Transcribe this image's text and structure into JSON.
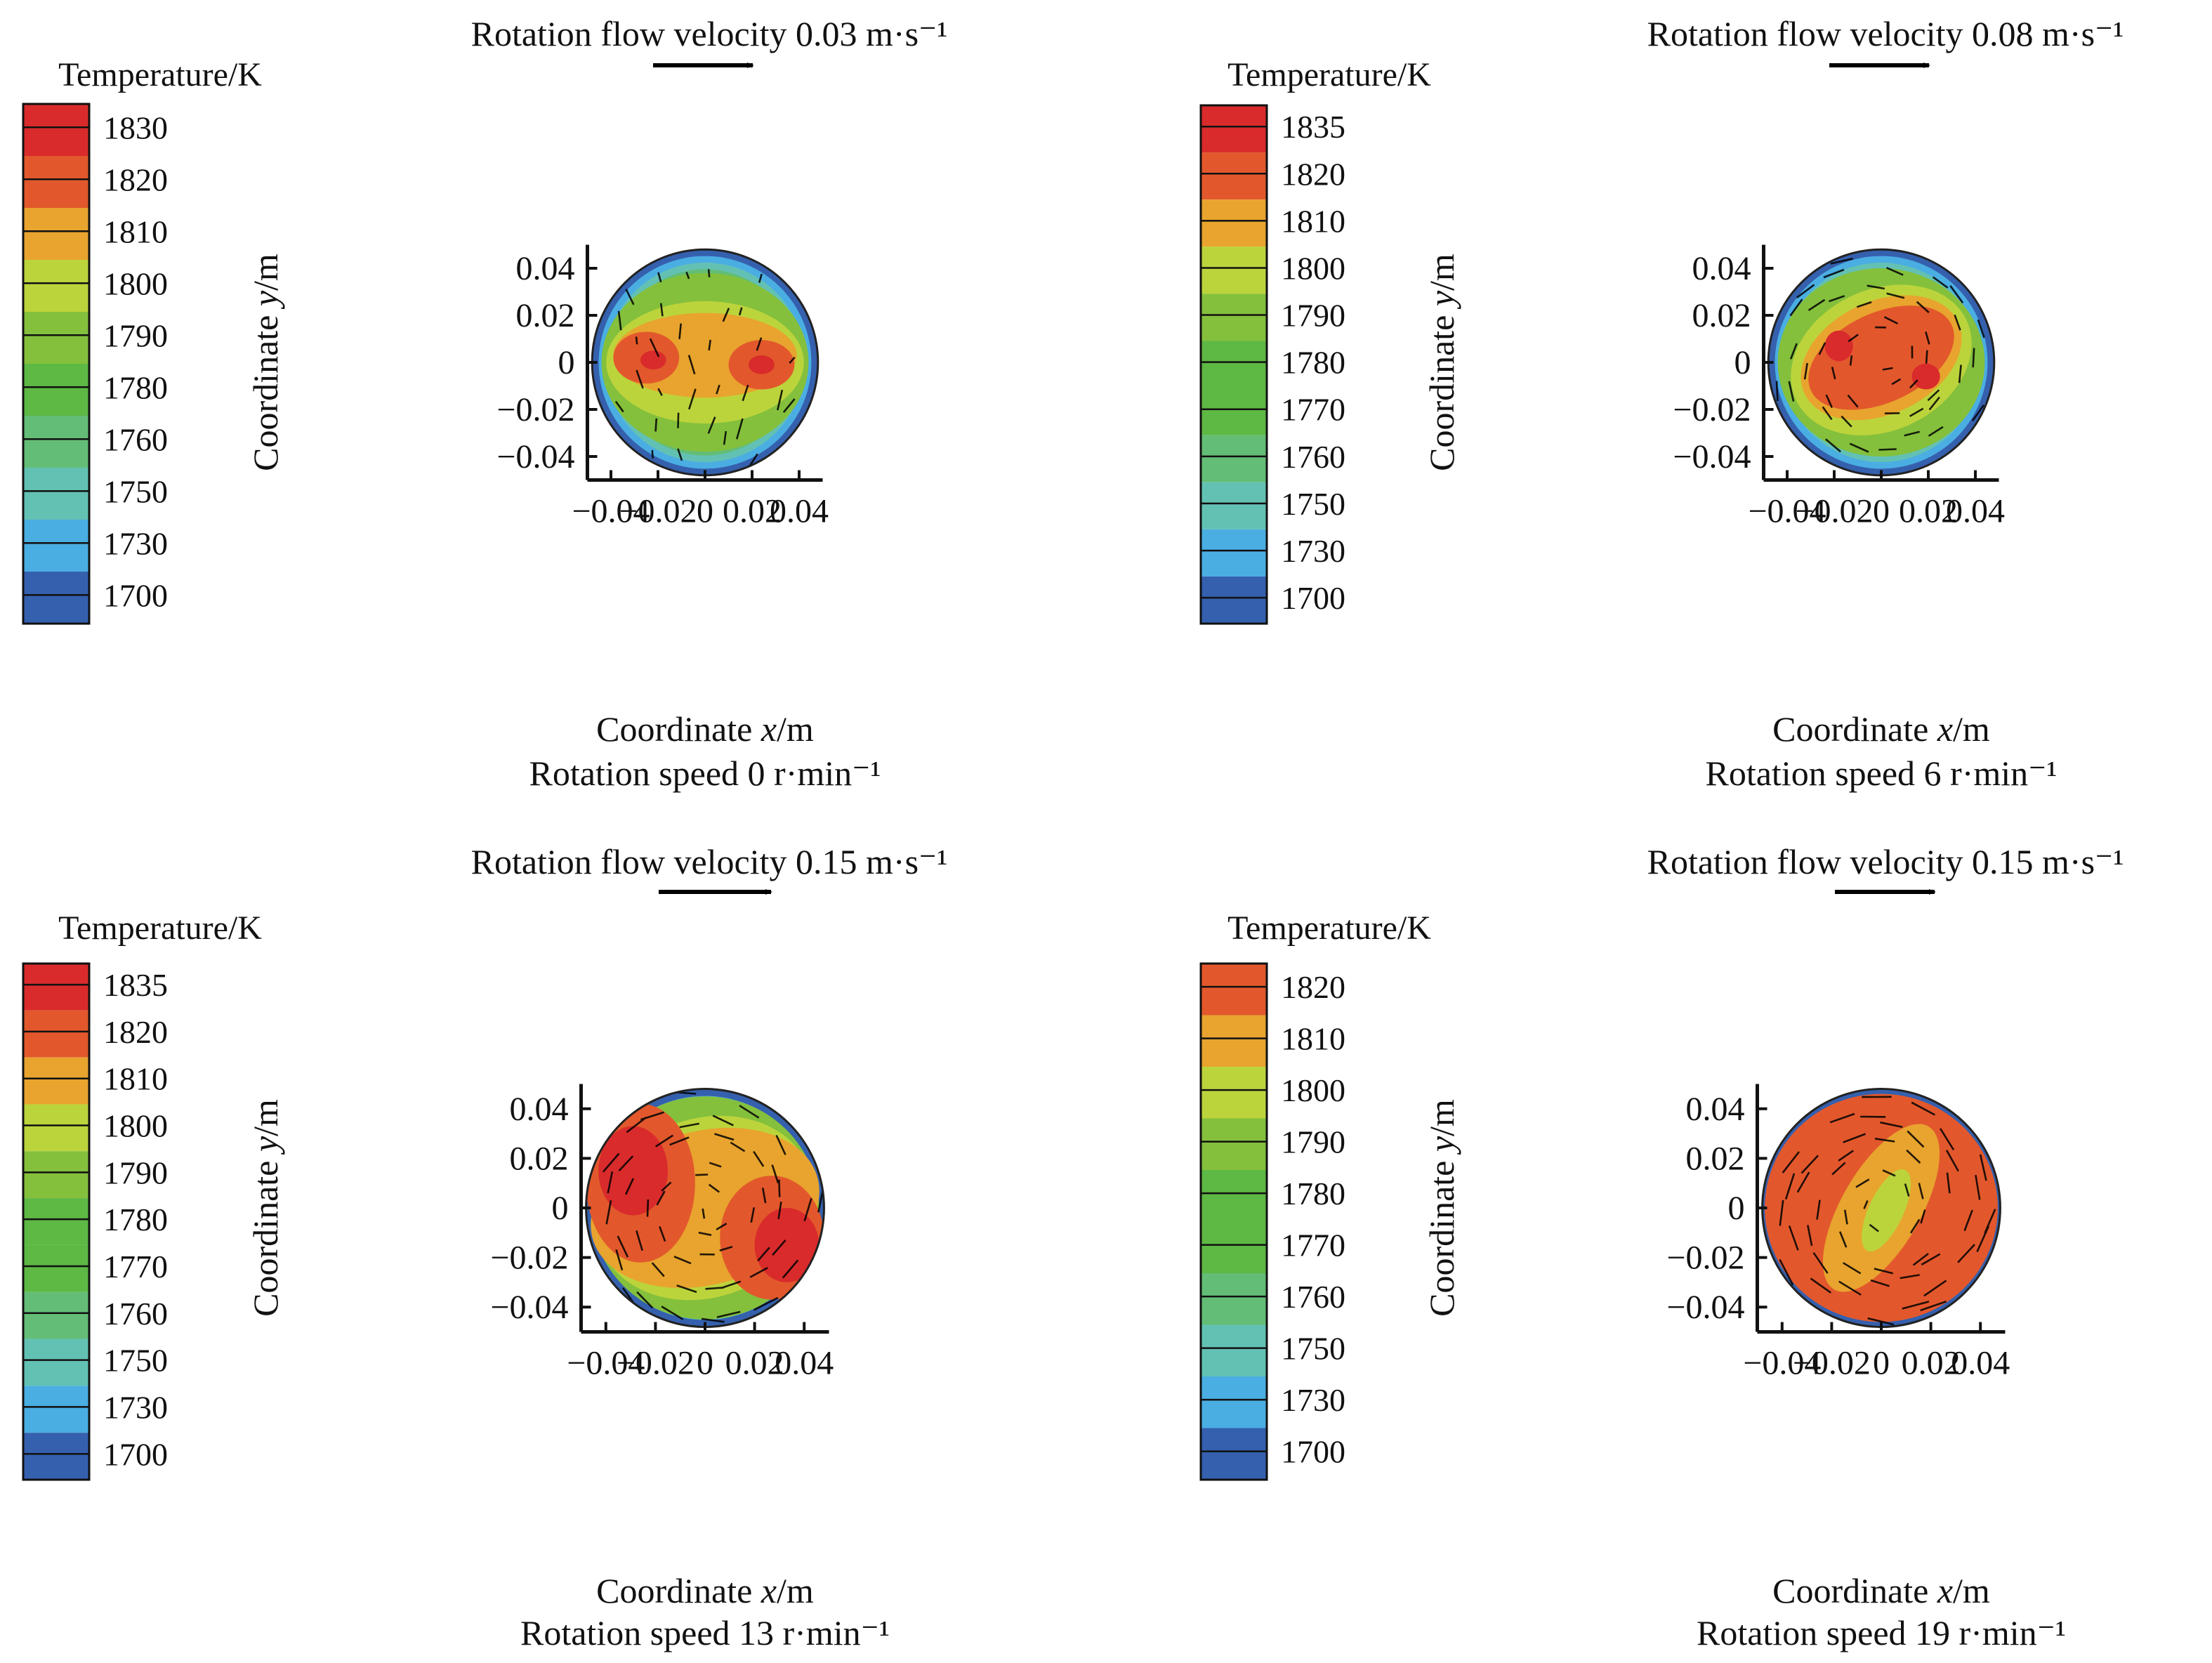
{
  "figure": {
    "panels": [
      {
        "id": "a",
        "velocity_title": "Rotation flow velocity 0.03 m·s⁻¹",
        "speed_caption": "Rotation speed 0 r·min⁻¹",
        "legend_title": "Temperature/K",
        "legend_levels": [
          "1830",
          "1820",
          "1810",
          "1800",
          "1790",
          "1780",
          "1760",
          "1750",
          "1730",
          "1700"
        ],
        "xlabel_pre": "Coordinate ",
        "xlabel_var": "x",
        "xlabel_post": "/m",
        "ylabel_pre": "Coordinate ",
        "ylabel_var": "y",
        "ylabel_post": "/m",
        "xticks": [
          "−0.04",
          "−0.02",
          "0",
          "0.02",
          "0.04"
        ],
        "yticks": [
          "0.04",
          "0.02",
          "0",
          "−0.02",
          "−0.04"
        ]
      },
      {
        "id": "b",
        "velocity_title": "Rotation flow velocity 0.08 m·s⁻¹",
        "speed_caption": "Rotation speed 6 r·min⁻¹",
        "legend_title": "Temperature/K",
        "legend_levels": [
          "1835",
          "1820",
          "1810",
          "1800",
          "1790",
          "1780",
          "1770",
          "1760",
          "1750",
          "1730",
          "1700"
        ],
        "xlabel_pre": "Coordinate ",
        "xlabel_var": "x",
        "xlabel_post": "/m",
        "ylabel_pre": "Coordinate ",
        "ylabel_var": "y",
        "ylabel_post": "/m",
        "xticks": [
          "−0.04",
          "−0.02",
          "0",
          "0.02",
          "0.04"
        ],
        "yticks": [
          "0.04",
          "0.02",
          "0",
          "−0.02",
          "−0.04"
        ]
      },
      {
        "id": "c",
        "velocity_title": "Rotation flow velocity 0.15 m·s⁻¹",
        "speed_caption": "Rotation speed 13 r·min⁻¹",
        "legend_title": "Temperature/K",
        "legend_levels": [
          "1835",
          "1820",
          "1810",
          "1800",
          "1790",
          "1780",
          "1770",
          "1760",
          "1750",
          "1730",
          "1700"
        ],
        "xlabel_pre": "Coordinate ",
        "xlabel_var": "x",
        "xlabel_post": "/m",
        "ylabel_pre": "Coordinate ",
        "ylabel_var": "y",
        "ylabel_post": "/m",
        "xticks": [
          "−0.04",
          "−0.02",
          "0",
          "0.02",
          "0.04"
        ],
        "yticks": [
          "0.04",
          "0.02",
          "0",
          "−0.02",
          "−0.04"
        ]
      },
      {
        "id": "d",
        "velocity_title": "Rotation flow velocity 0.15 m·s⁻¹",
        "speed_caption": "Rotation speed 19 r·min⁻¹",
        "legend_title": "Temperature/K",
        "legend_levels": [
          "1820",
          "1810",
          "1800",
          "1790",
          "1780",
          "1770",
          "1760",
          "1750",
          "1730",
          "1700"
        ],
        "xlabel_pre": "Coordinate ",
        "xlabel_var": "x",
        "xlabel_post": "/m",
        "ylabel_pre": "Coordinate ",
        "ylabel_var": "y",
        "ylabel_post": "/m",
        "xticks": [
          "−0.04",
          "−0.02",
          "0",
          "0.02",
          "0.04"
        ],
        "yticks": [
          "0.04",
          "0.02",
          "0",
          "−0.02",
          "−0.04"
        ]
      }
    ]
  },
  "colors": {
    "1835": "#d92b2b",
    "1830": "#d92b2b",
    "1820": "#e2582c",
    "1810": "#e8a42e",
    "1800": "#bcd43c",
    "1790": "#84c03c",
    "1780": "#5db844",
    "1770": "#5db844",
    "1760": "#63bd76",
    "1750": "#63c1b4",
    "1730": "#4aaee2",
    "1700": "#3560ae",
    "axis": "#111111",
    "vector": "#000000"
  },
  "chart_data": [
    {
      "type": "heatmap",
      "subtype": "temperature contour with velocity vectors",
      "title": "Rotation flow velocity 0.03 m·s⁻¹",
      "caption": "Rotation speed 0 r·min⁻¹",
      "xlabel": "Coordinate x/m",
      "ylabel": "Coordinate y/m",
      "xlim": [
        -0.05,
        0.05
      ],
      "ylim": [
        -0.05,
        0.05
      ],
      "domain_radius": 0.048,
      "colorbar_title": "Temperature/K",
      "colorbar_levels": [
        1830,
        1820,
        1810,
        1800,
        1790,
        1780,
        1760,
        1750,
        1730,
        1700
      ],
      "rotation_flow_velocity": 0.03,
      "rotation_speed": 0,
      "regions": [
        {
          "level": 1790,
          "shape": "ellipse",
          "cx": 0,
          "cy": 0,
          "rx": 0.044,
          "ry": 0.038,
          "rot": 0
        },
        {
          "level": 1800,
          "shape": "ellipse",
          "cx": 0,
          "cy": 0,
          "rx": 0.042,
          "ry": 0.026,
          "rot": 0
        },
        {
          "level": 1810,
          "shape": "ellipse",
          "cx": 0,
          "cy": 0.003,
          "rx": 0.039,
          "ry": 0.018,
          "rot": 0
        },
        {
          "level": 1820,
          "shape": "ellipse",
          "cx": -0.025,
          "cy": 0.002,
          "rx": 0.014,
          "ry": 0.011,
          "rot": 0
        },
        {
          "level": 1820,
          "shape": "ellipse",
          "cx": 0.024,
          "cy": -0.001,
          "rx": 0.014,
          "ry": 0.0105,
          "rot": 0
        },
        {
          "level": 1830,
          "shape": "ellipse",
          "cx": -0.022,
          "cy": 0.001,
          "rx": 0.0055,
          "ry": 0.004,
          "rot": 0
        },
        {
          "level": 1830,
          "shape": "ellipse",
          "cx": 0.024,
          "cy": -0.001,
          "rx": 0.0055,
          "ry": 0.004,
          "rot": 0
        }
      ],
      "rim_levels": [
        1700,
        1730,
        1750,
        1760,
        1780
      ],
      "vector_field": "vertical"
    },
    {
      "type": "heatmap",
      "subtype": "temperature contour with velocity vectors",
      "title": "Rotation flow velocity 0.08 m·s⁻¹",
      "caption": "Rotation speed 6 r·min⁻¹",
      "xlabel": "Coordinate x/m",
      "ylabel": "Coordinate y/m",
      "xlim": [
        -0.05,
        0.05
      ],
      "ylim": [
        -0.05,
        0.05
      ],
      "domain_radius": 0.048,
      "colorbar_title": "Temperature/K",
      "colorbar_levels": [
        1835,
        1820,
        1810,
        1800,
        1790,
        1780,
        1770,
        1760,
        1750,
        1730,
        1700
      ],
      "rotation_flow_velocity": 0.08,
      "rotation_speed": 6,
      "regions": [
        {
          "level": 1790,
          "shape": "ellipse",
          "cx": 0,
          "cy": 0,
          "rx": 0.044,
          "ry": 0.04,
          "rot": 0
        },
        {
          "level": 1800,
          "shape": "ellipse",
          "cx": 0,
          "cy": 0.001,
          "rx": 0.04,
          "ry": 0.03,
          "rot": -25
        },
        {
          "level": 1810,
          "shape": "ellipse",
          "cx": 0,
          "cy": 0.002,
          "rx": 0.036,
          "ry": 0.024,
          "rot": -25
        },
        {
          "level": 1820,
          "shape": "ellipse",
          "cx": 0,
          "cy": 0.002,
          "rx": 0.033,
          "ry": 0.019,
          "rot": -25
        },
        {
          "level": 1835,
          "shape": "ellipse",
          "cx": -0.018,
          "cy": 0.007,
          "rx": 0.006,
          "ry": 0.0065,
          "rot": 0
        },
        {
          "level": 1835,
          "shape": "ellipse",
          "cx": 0.019,
          "cy": -0.006,
          "rx": 0.006,
          "ry": 0.0055,
          "rot": 0
        }
      ],
      "rim_levels": [
        1700,
        1730,
        1750,
        1760,
        1770
      ],
      "vector_field": "swirl"
    },
    {
      "type": "heatmap",
      "subtype": "temperature contour with velocity vectors",
      "title": "Rotation flow velocity 0.15 m·s⁻¹",
      "caption": "Rotation speed 13 r·min⁻¹",
      "xlabel": "Coordinate x/m",
      "ylabel": "Coordinate y/m",
      "xlim": [
        -0.05,
        0.05
      ],
      "ylim": [
        -0.05,
        0.05
      ],
      "domain_radius": 0.048,
      "colorbar_title": "Temperature/K",
      "colorbar_levels": [
        1835,
        1820,
        1810,
        1800,
        1790,
        1780,
        1770,
        1760,
        1750,
        1730,
        1700
      ],
      "rotation_flow_velocity": 0.15,
      "rotation_speed": 13,
      "regions": [
        {
          "level": 1790,
          "shape": "ellipse",
          "cx": 0,
          "cy": 0,
          "rx": 0.046,
          "ry": 0.045,
          "rot": 0
        },
        {
          "level": 1800,
          "shape": "ellipse",
          "cx": 0,
          "cy": 0,
          "rx": 0.045,
          "ry": 0.036,
          "rot": -20
        },
        {
          "level": 1810,
          "shape": "ellipse",
          "cx": 0,
          "cy": 0,
          "rx": 0.047,
          "ry": 0.031,
          "rot": -15
        },
        {
          "level": 1820,
          "shape": "ellipse",
          "cx": -0.026,
          "cy": 0.01,
          "rx": 0.022,
          "ry": 0.032,
          "rot": 0
        },
        {
          "level": 1820,
          "shape": "ellipse",
          "cx": 0.027,
          "cy": -0.012,
          "rx": 0.021,
          "ry": 0.025,
          "rot": 0
        },
        {
          "level": 1835,
          "shape": "ellipse",
          "cx": -0.029,
          "cy": 0.015,
          "rx": 0.014,
          "ry": 0.018,
          "rot": 0
        },
        {
          "level": 1835,
          "shape": "ellipse",
          "cx": 0.033,
          "cy": -0.015,
          "rx": 0.013,
          "ry": 0.015,
          "rot": 0
        }
      ],
      "rim_levels": [
        1700,
        1730,
        1760,
        1780
      ],
      "vector_field": "swirl"
    },
    {
      "type": "heatmap",
      "subtype": "temperature contour with velocity vectors",
      "title": "Rotation flow velocity 0.15 m·s⁻¹",
      "caption": "Rotation speed 19 r·min⁻¹",
      "xlabel": "Coordinate x/m",
      "ylabel": "Coordinate y/m",
      "xlim": [
        -0.05,
        0.05
      ],
      "ylim": [
        -0.05,
        0.05
      ],
      "domain_radius": 0.048,
      "colorbar_title": "Temperature/K",
      "colorbar_levels": [
        1820,
        1810,
        1800,
        1790,
        1780,
        1770,
        1760,
        1750,
        1730,
        1700
      ],
      "rotation_flow_velocity": 0.15,
      "rotation_speed": 19,
      "regions": [
        {
          "level": 1820,
          "shape": "ellipse",
          "cx": 0,
          "cy": 0,
          "rx": 0.047,
          "ry": 0.046,
          "rot": 0
        },
        {
          "level": 1810,
          "shape": "ellipse",
          "cx": 0,
          "cy": 0,
          "rx": 0.038,
          "ry": 0.016,
          "rot": -60
        },
        {
          "level": 1800,
          "shape": "ellipse",
          "cx": 0.002,
          "cy": -0.001,
          "rx": 0.018,
          "ry": 0.007,
          "rot": -65
        }
      ],
      "rim_levels": [
        1700,
        1730,
        1760,
        1780,
        1800
      ],
      "vector_field": "swirl"
    }
  ]
}
